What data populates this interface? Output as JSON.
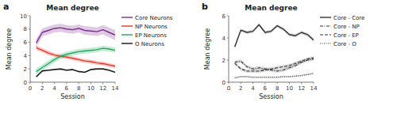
{
  "chart_data": [
    {
      "type": "line",
      "title": "Mean degree",
      "annotations": [
        "a"
      ],
      "xlabel": "Session",
      "ylabel": "Mean degree",
      "x": [
        1,
        2,
        3,
        4,
        5,
        6,
        7,
        8,
        9,
        10,
        11,
        12,
        13,
        14
      ],
      "xlim": [
        0,
        14
      ],
      "xticks": [
        0,
        2,
        4,
        6,
        8,
        10,
        12,
        14
      ],
      "ylim": [
        0,
        10
      ],
      "yticks": [
        0,
        2,
        4,
        6,
        8,
        10
      ],
      "grid": false,
      "legend": "right",
      "series": [
        {
          "name": "Core Neurons",
          "color": "#7b2d8b",
          "line_style": "solid",
          "values": [
            5.9,
            7.5,
            7.8,
            8.1,
            8.2,
            8.0,
            7.9,
            8.1,
            7.8,
            7.7,
            7.6,
            7.9,
            7.5,
            7.1
          ],
          "sem": [
            0.6,
            0.6,
            0.6,
            0.6,
            0.6,
            0.6,
            0.6,
            0.6,
            0.65,
            0.65,
            0.65,
            0.7,
            0.75,
            0.75
          ]
        },
        {
          "name": "NP Neurons",
          "color": "#e8352a",
          "line_style": "solid",
          "values": [
            5.2,
            4.8,
            4.4,
            4.1,
            3.9,
            3.8,
            3.6,
            3.4,
            3.2,
            3.1,
            2.9,
            2.8,
            2.6,
            2.4
          ],
          "sem": [
            0.35,
            0.35,
            0.35,
            0.3,
            0.3,
            0.3,
            0.3,
            0.3,
            0.3,
            0.3,
            0.3,
            0.3,
            0.3,
            0.3
          ]
        },
        {
          "name": "EP Neurons",
          "color": "#1faa5e",
          "line_style": "solid",
          "values": [
            1.6,
            2.2,
            2.8,
            3.4,
            3.9,
            4.2,
            4.4,
            4.6,
            4.7,
            4.8,
            4.9,
            5.1,
            5.0,
            4.8
          ],
          "sem": [
            0.45,
            0.45,
            0.45,
            0.45,
            0.4,
            0.4,
            0.4,
            0.4,
            0.4,
            0.4,
            0.4,
            0.4,
            0.4,
            0.4
          ]
        },
        {
          "name": "O Neurons",
          "color": "#111111",
          "line_style": "solid",
          "values": [
            0.8,
            1.7,
            1.8,
            1.9,
            2.0,
            1.8,
            1.9,
            1.6,
            1.5,
            1.9,
            2.0,
            2.0,
            1.8,
            1.5
          ],
          "sem": [
            0.12,
            0.12,
            0.12,
            0.12,
            0.12,
            0.12,
            0.12,
            0.12,
            0.12,
            0.12,
            0.12,
            0.12,
            0.12,
            0.12
          ]
        }
      ]
    },
    {
      "type": "line",
      "title": "Mean degree",
      "annotations": [
        "b"
      ],
      "xlabel": "Session",
      "ylabel": "Mean degree",
      "x": [
        1,
        2,
        3,
        4,
        5,
        6,
        7,
        8,
        9,
        10,
        11,
        12,
        13,
        14
      ],
      "xlim": [
        0,
        14
      ],
      "xticks": [
        0,
        2,
        4,
        6,
        8,
        10,
        12,
        14
      ],
      "ylim": [
        0,
        6
      ],
      "yticks": [
        0,
        2,
        4,
        6
      ],
      "grid": false,
      "legend": "right",
      "series": [
        {
          "name": "Core - Core",
          "color": "#333333",
          "line_style": "solid",
          "values": [
            3.2,
            4.7,
            4.5,
            4.6,
            5.2,
            4.5,
            4.6,
            5.1,
            4.8,
            4.3,
            4.2,
            4.5,
            4.3,
            3.8
          ],
          "sem": [
            0.15,
            0.15,
            0.15,
            0.15,
            0.15,
            0.15,
            0.15,
            0.15,
            0.15,
            0.15,
            0.15,
            0.15,
            0.15,
            0.15
          ]
        },
        {
          "name": "Core - NP",
          "color": "#333333",
          "line_style": "dashdot",
          "values": [
            1.8,
            1.9,
            1.4,
            1.2,
            1.3,
            1.2,
            1.1,
            1.0,
            1.1,
            1.3,
            1.5,
            1.8,
            2.0,
            2.1
          ],
          "sem": [
            0.15,
            0.15,
            0.15,
            0.15,
            0.15,
            0.15,
            0.15,
            0.15,
            0.15,
            0.15,
            0.15,
            0.15,
            0.15,
            0.15
          ]
        },
        {
          "name": "Core - EP",
          "color": "#333333",
          "line_style": "dashed",
          "values": [
            1.7,
            1.2,
            1.0,
            1.0,
            1.0,
            1.1,
            1.2,
            1.3,
            1.4,
            1.5,
            1.7,
            1.9,
            2.1,
            2.2
          ],
          "sem": [
            0.15,
            0.15,
            0.15,
            0.15,
            0.15,
            0.15,
            0.15,
            0.15,
            0.15,
            0.15,
            0.15,
            0.15,
            0.15,
            0.15
          ]
        },
        {
          "name": "Core - O",
          "color": "#333333",
          "line_style": "dotted",
          "values": [
            0.4,
            0.5,
            0.5,
            0.45,
            0.45,
            0.45,
            0.45,
            0.45,
            0.5,
            0.5,
            0.55,
            0.6,
            0.7,
            0.8
          ],
          "sem": [
            0.07,
            0.07,
            0.07,
            0.07,
            0.07,
            0.07,
            0.07,
            0.07,
            0.07,
            0.07,
            0.07,
            0.07,
            0.07,
            0.07
          ]
        }
      ]
    }
  ]
}
